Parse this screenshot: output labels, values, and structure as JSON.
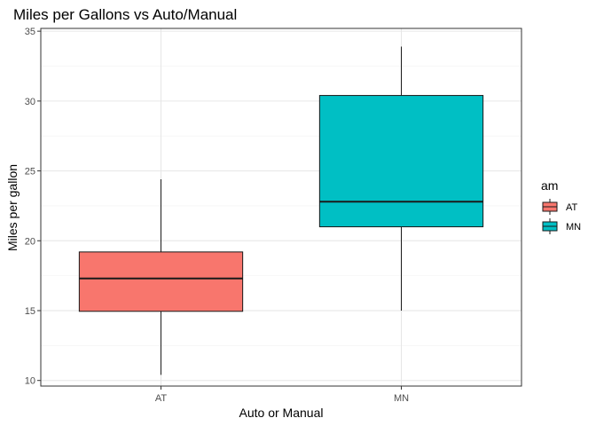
{
  "chart_data": {
    "type": "boxplot",
    "title": "Miles per Gallons vs Auto/Manual",
    "xlabel": "Auto or Manual",
    "ylabel": "Miles per gallon",
    "categories": [
      "AT",
      "MN"
    ],
    "ylim": [
      9.6,
      35.2
    ],
    "yticks": [
      10,
      15,
      20,
      25,
      30,
      35
    ],
    "grid": true,
    "legend": {
      "title": "am",
      "placement": "right",
      "entries": [
        "AT",
        "MN"
      ]
    },
    "series": [
      {
        "name": "AT",
        "color": "#F8766D",
        "whisker_low": 10.4,
        "q1": 14.95,
        "median": 17.3,
        "q3": 19.2,
        "whisker_high": 24.4
      },
      {
        "name": "MN",
        "color": "#00BFC4",
        "whisker_low": 15.0,
        "q1": 21.0,
        "median": 22.8,
        "q3": 30.4,
        "whisker_high": 33.9
      }
    ]
  }
}
